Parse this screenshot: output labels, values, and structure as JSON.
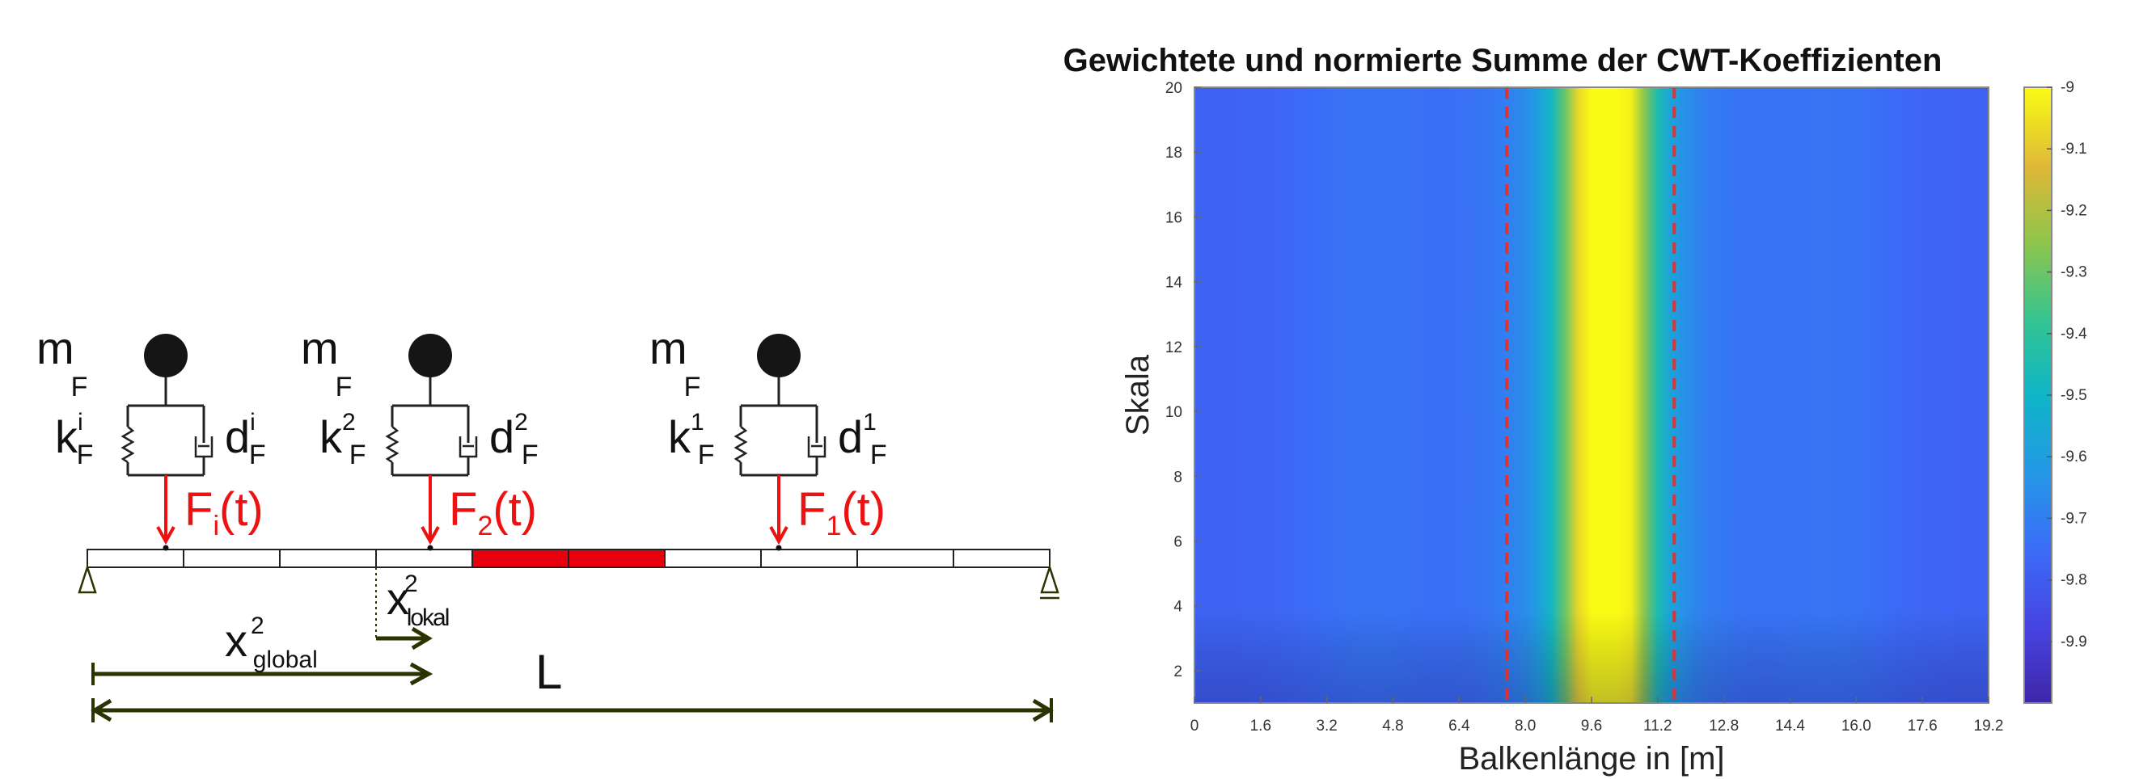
{
  "diagram": {
    "masses": [
      {
        "m": "m",
        "m_sup": "",
        "m_sub": "F",
        "k": "k",
        "k_sup": "i",
        "k_sub": "F",
        "d": "d",
        "d_sup": "i",
        "d_sub": "F",
        "force": "F",
        "force_sub": "i",
        "force_arg": "(t)"
      },
      {
        "m": "m",
        "m_sup": "",
        "m_sub": "F",
        "k": "k",
        "k_sup": "2",
        "k_sub": "F",
        "d": "d",
        "d_sup": "2",
        "d_sub": "F",
        "force": "F",
        "force_sub": "2",
        "force_arg": "(t)"
      },
      {
        "m": "m",
        "m_sup": "",
        "m_sub": "F",
        "k": "k",
        "k_sup": "1",
        "k_sub": "F",
        "d": "d",
        "d_sup": "1",
        "d_sub": "F",
        "force": "F",
        "force_sub": "1",
        "force_arg": "(t)"
      }
    ],
    "x_global": {
      "base": "x",
      "sup": "2",
      "sub": "global"
    },
    "x_lokal": {
      "base": "x",
      "sup": "2",
      "sub": "lokal"
    },
    "length_label": "L",
    "beam_segments": 10,
    "damaged_segments": [
      4,
      5
    ],
    "colors": {
      "force": "#ee1111",
      "damage": "#e8000f",
      "dimension": "#2c3300",
      "mass": "#151515"
    }
  },
  "chart_data": {
    "type": "heatmap",
    "title": "Gewichtete und normierte Summe der CWT-Koeffizienten",
    "xlabel": "Balkenlänge in [m]",
    "ylabel": "Skala",
    "xlim": [
      0,
      19.2
    ],
    "ylim": [
      1,
      20
    ],
    "x_ticks": [
      "0",
      "1.6",
      "3.2",
      "4.8",
      "6.4",
      "8.0",
      "9.6",
      "11.2",
      "12.8",
      "14.4",
      "16.0",
      "17.6",
      "19.2"
    ],
    "y_ticks": [
      "2",
      "4",
      "6",
      "8",
      "10",
      "12",
      "14",
      "16",
      "18",
      "20"
    ],
    "colorbar_ticks": [
      "-9",
      "-9.1",
      "-9.2",
      "-9.3",
      "-9.4",
      "-9.5",
      "-9.6",
      "-9.7",
      "-9.8",
      "-9.9"
    ],
    "colorbar_range": [
      -10,
      -9
    ],
    "colormap": "parula",
    "peak_center_m": 9.95,
    "damage_markers_m": [
      7.55,
      11.6
    ],
    "damage_marker_color": "#e03030"
  }
}
